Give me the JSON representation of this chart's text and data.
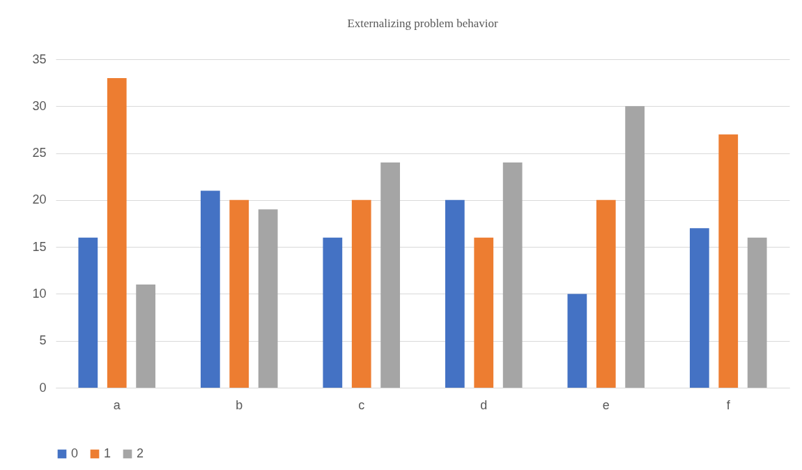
{
  "chart_data": {
    "type": "bar",
    "title": "Externalizing problem behavior",
    "categories": [
      "a",
      "b",
      "c",
      "d",
      "e",
      "f"
    ],
    "series": [
      {
        "name": "0",
        "color": "#4472c4",
        "values": [
          16,
          21,
          16,
          20,
          10,
          17
        ]
      },
      {
        "name": "1",
        "color": "#ed7d31",
        "values": [
          33,
          20,
          20,
          16,
          20,
          27
        ]
      },
      {
        "name": "2",
        "color": "#a5a5a5",
        "values": [
          11,
          19,
          24,
          24,
          30,
          16
        ]
      }
    ],
    "ylim": [
      0,
      35
    ],
    "yticks": [
      0,
      5,
      10,
      15,
      20,
      25,
      30,
      35
    ],
    "grid": "y",
    "legend": "bottom"
  }
}
